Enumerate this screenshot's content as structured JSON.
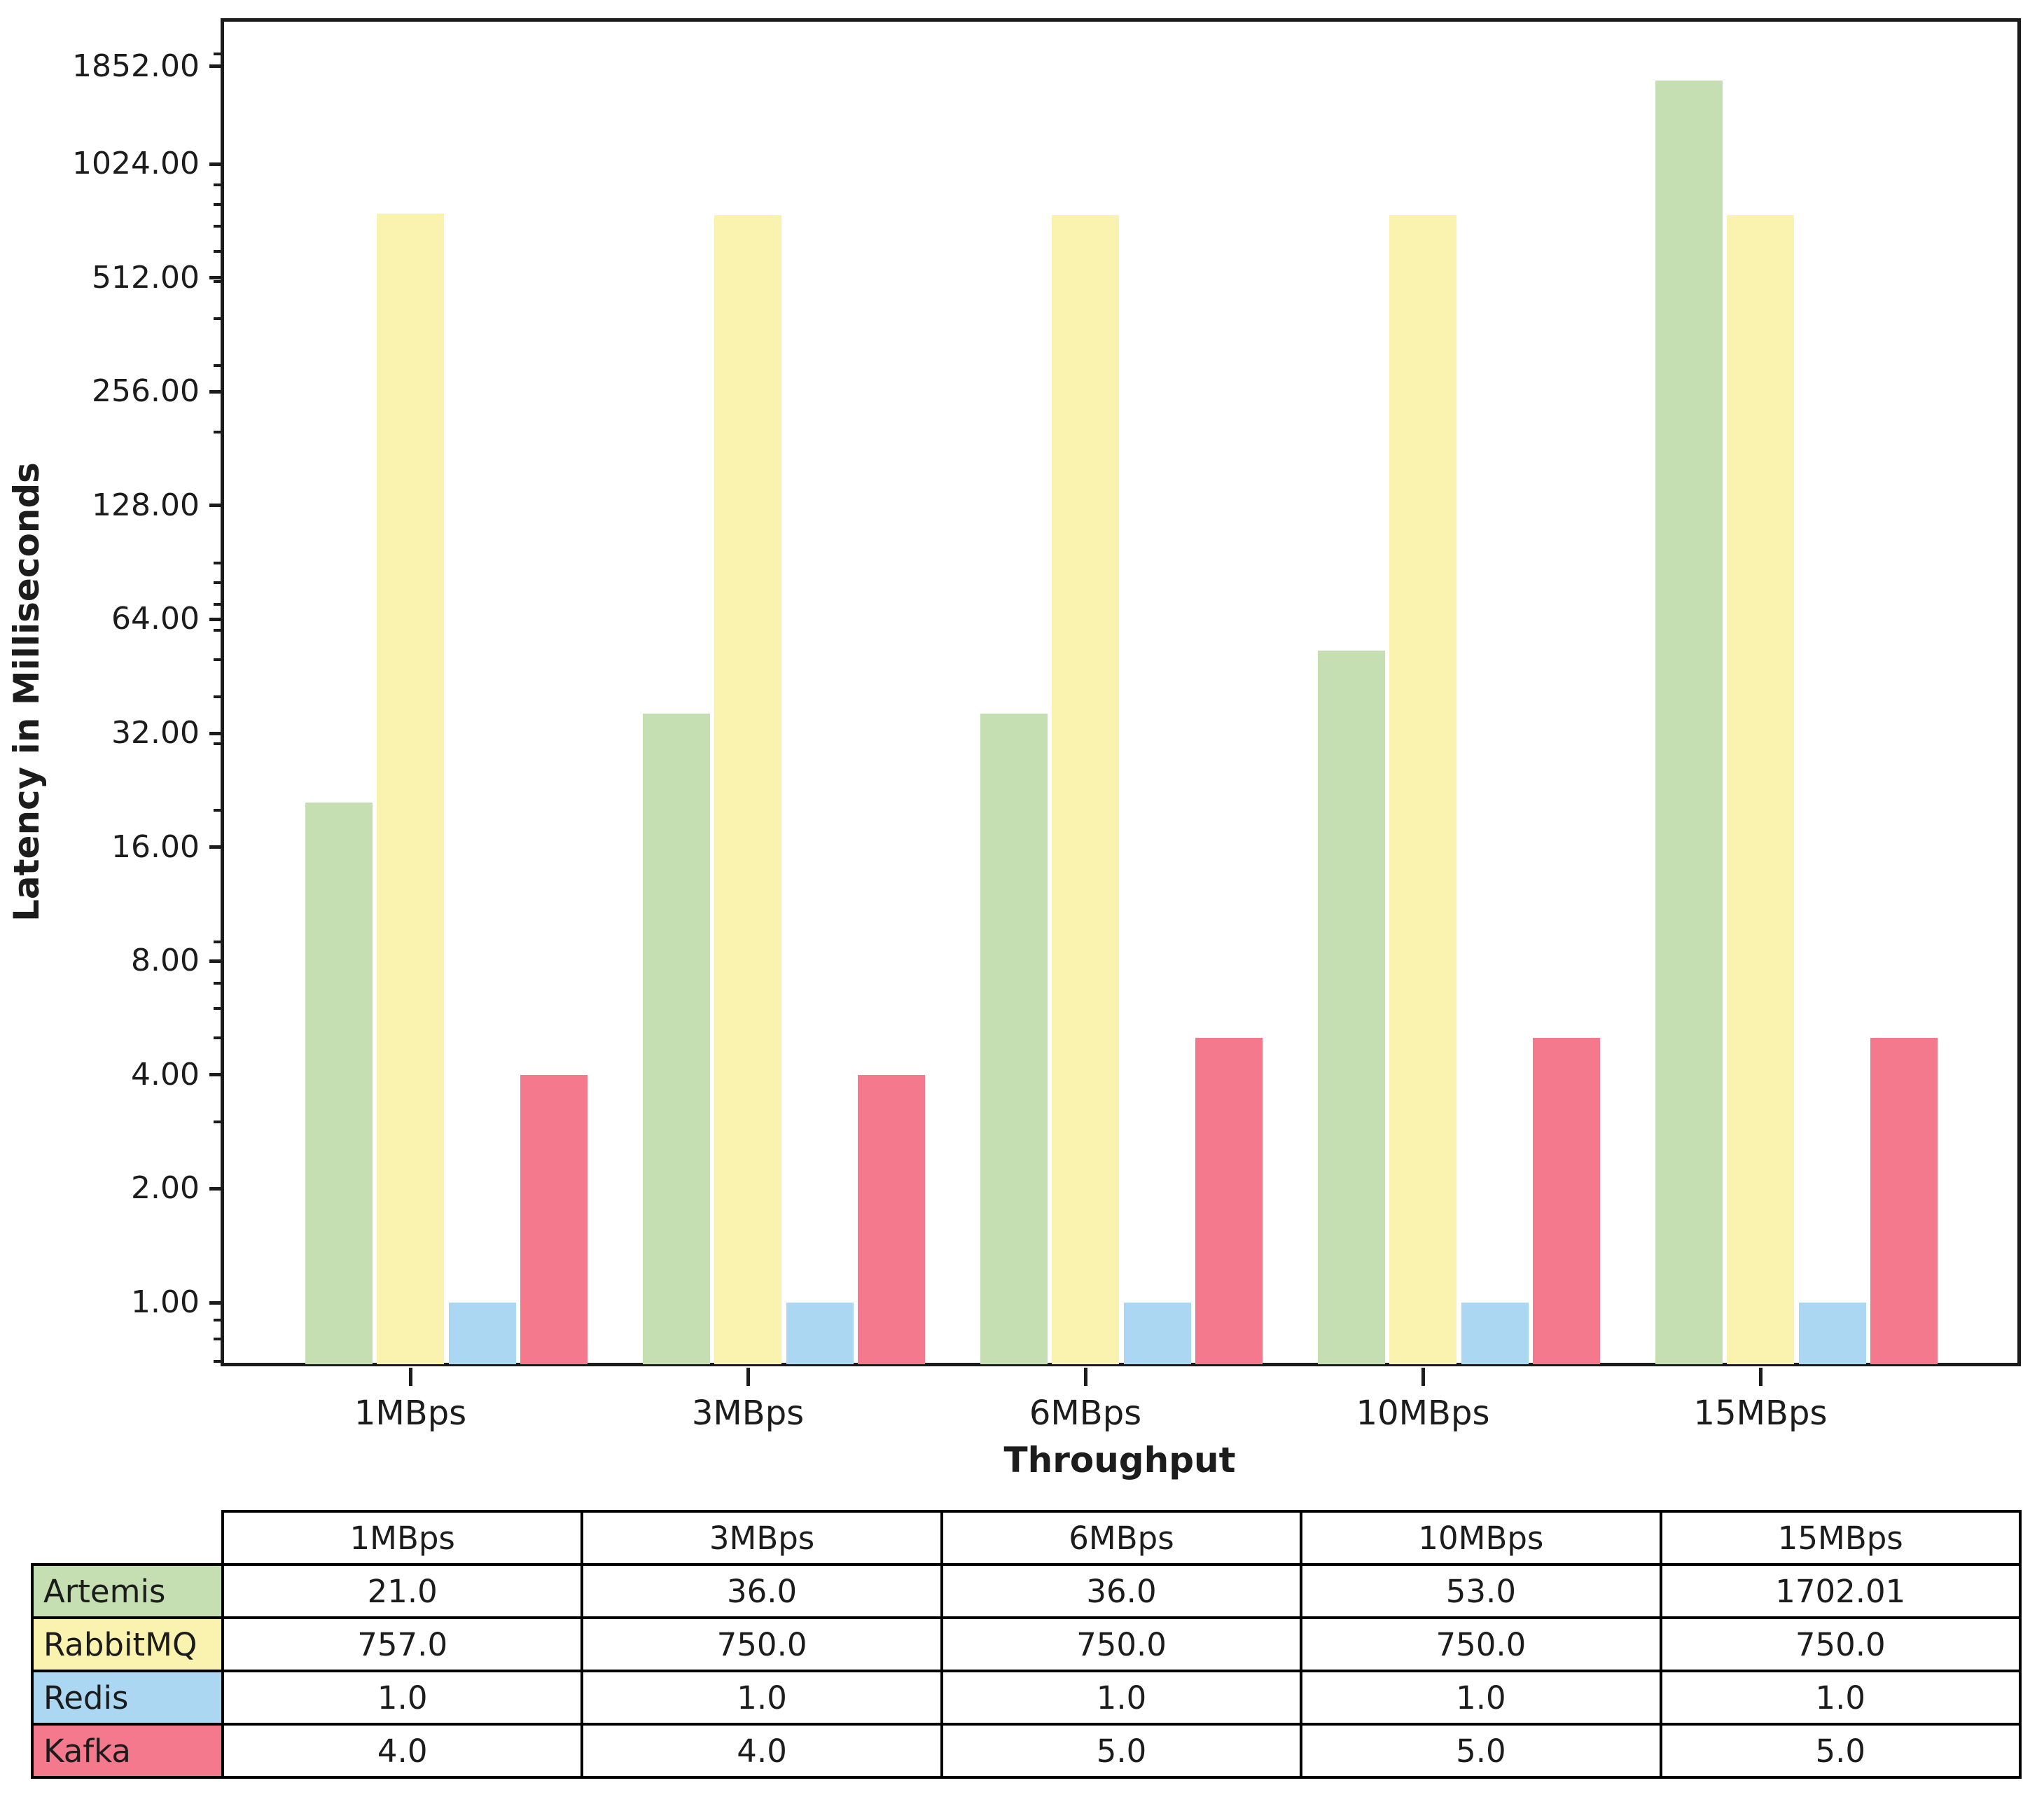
{
  "chart_data": {
    "type": "bar",
    "title": "",
    "xlabel": "Throughput",
    "ylabel": "Latency in Milliseconds",
    "yscale": "log-base-2",
    "ylim": [
      0.687,
      2470
    ],
    "grid": false,
    "legend_position": "table-row-labels",
    "categories": [
      "1MBps",
      "3MBps",
      "6MBps",
      "10MBps",
      "15MBps"
    ],
    "series": [
      {
        "name": "Artemis",
        "color": "#c6dfb2",
        "values": [
          21.0,
          36.0,
          36.0,
          53.0,
          1702.01
        ]
      },
      {
        "name": "RabbitMQ",
        "color": "#faf3b0",
        "values": [
          757.0,
          750.0,
          750.0,
          750.0,
          750.0
        ]
      },
      {
        "name": "Redis",
        "color": "#abd7f2",
        "values": [
          1.0,
          1.0,
          1.0,
          1.0,
          1.0
        ]
      },
      {
        "name": "Kafka",
        "color": "#f4798c",
        "values": [
          4.0,
          4.0,
          5.0,
          5.0,
          5.0
        ]
      }
    ],
    "y_major_ticks": [
      {
        "value": 1852,
        "label": "1852.00"
      },
      {
        "value": 1024,
        "label": "1024.00"
      },
      {
        "value": 512,
        "label": "512.00"
      },
      {
        "value": 256,
        "label": "256.00"
      },
      {
        "value": 128,
        "label": "128.00"
      },
      {
        "value": 64,
        "label": "64.00"
      },
      {
        "value": 32,
        "label": "32.00"
      },
      {
        "value": 16,
        "label": "16.00"
      },
      {
        "value": 8,
        "label": "8.00"
      },
      {
        "value": 4,
        "label": "4.00"
      },
      {
        "value": 2,
        "label": "2.00"
      },
      {
        "value": 1,
        "label": "1.00"
      }
    ],
    "y_minor_ticks": [
      0.7,
      0.8,
      0.9,
      3,
      5,
      6,
      7,
      9,
      20,
      30,
      40,
      50,
      60,
      70,
      80,
      90,
      200,
      300,
      400,
      500,
      600,
      700,
      800,
      900,
      2000
    ]
  },
  "table": {
    "columns": [
      "1MBps",
      "3MBps",
      "6MBps",
      "10MBps",
      "15MBps"
    ],
    "rows": [
      {
        "label": "Artemis",
        "color": "#c6dfb2",
        "values": [
          "21.0",
          "36.0",
          "36.0",
          "53.0",
          "1702.01"
        ]
      },
      {
        "label": "RabbitMQ",
        "color": "#faf3b0",
        "values": [
          "757.0",
          "750.0",
          "750.0",
          "750.0",
          "750.0"
        ]
      },
      {
        "label": "Redis",
        "color": "#abd7f2",
        "values": [
          "1.0",
          "1.0",
          "1.0",
          "1.0",
          "1.0"
        ]
      },
      {
        "label": "Kafka",
        "color": "#f4798c",
        "values": [
          "4.0",
          "4.0",
          "5.0",
          "5.0",
          "5.0"
        ]
      }
    ]
  }
}
